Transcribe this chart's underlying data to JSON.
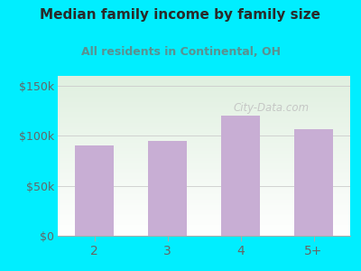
{
  "categories": [
    "2",
    "3",
    "4",
    "5+"
  ],
  "values": [
    90000,
    95000,
    120000,
    107000
  ],
  "bar_color": "#c8aed4",
  "title": "Median family income by family size",
  "subtitle": "All residents in Continental, OH",
  "title_color": "#2a2a2a",
  "subtitle_color": "#5a9090",
  "background_color": "#00eeff",
  "yticks": [
    0,
    50000,
    100000,
    150000
  ],
  "ytick_labels": [
    "$0",
    "$50k",
    "$100k",
    "$150k"
  ],
  "ylim": [
    0,
    160000
  ],
  "tick_color": "#666666",
  "watermark": "City-Data.com",
  "watermark_color": "#c0c0c0"
}
